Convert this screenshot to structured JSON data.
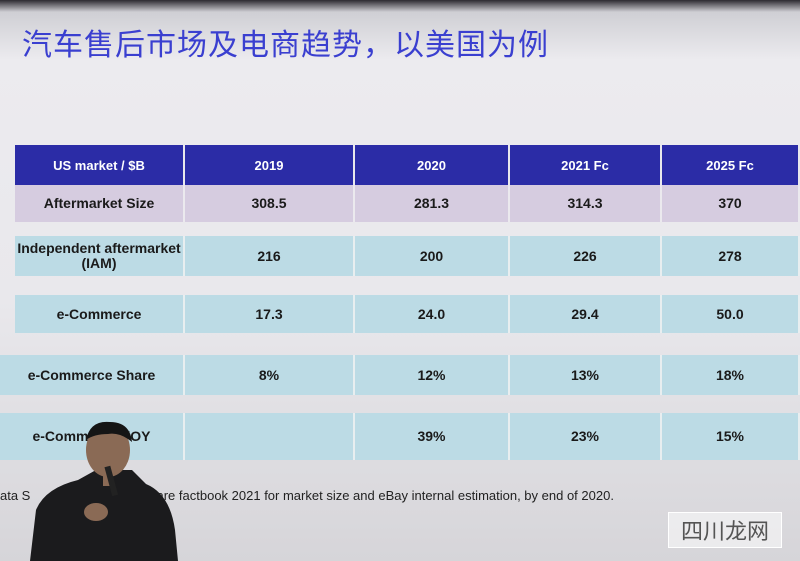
{
  "title": "汽车售后市场及电商趋势，以美国为例",
  "table": {
    "header": [
      "US market / $B",
      "2019",
      "2020",
      "2021 Fc",
      "2025 Fc"
    ],
    "rows": [
      [
        "Aftermarket Size",
        "308.5",
        "281.3",
        "314.3",
        "370"
      ],
      [
        "Independent aftermarket (IAM)",
        "216",
        "200",
        "226",
        "278"
      ],
      [
        "e-Commerce",
        "17.3",
        "24.0",
        "29.4",
        "50.0"
      ],
      [
        "e-Commerce Share",
        "8%",
        "12%",
        "13%",
        "18%"
      ],
      [
        "e-Commerce YOY",
        null,
        "39%",
        "23%",
        "15%"
      ]
    ]
  },
  "footnote": [
    "ata S",
    "care factbook 2021 for market size and eBay internal estimation, by end of 2020."
  ],
  "watermark": "四川龙网"
}
